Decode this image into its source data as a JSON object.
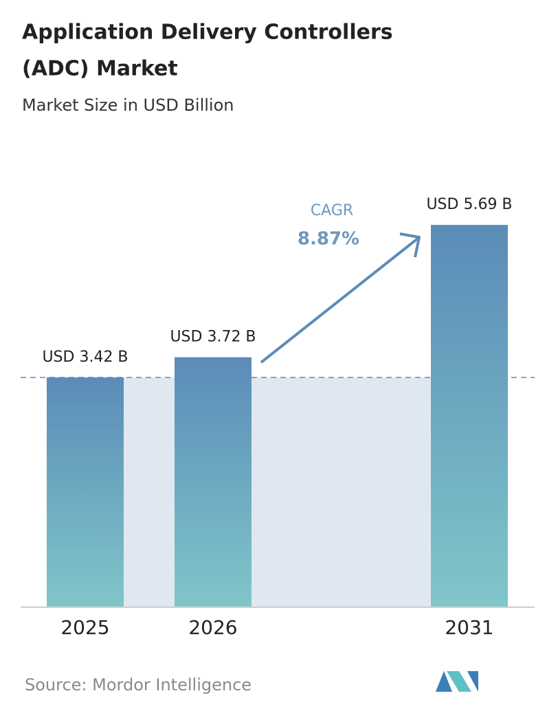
{
  "chart_data": {
    "type": "bar",
    "title": "Application Delivery Controllers (ADC) Market",
    "subtitle": "Market Size in USD Billion",
    "categories": [
      "2025",
      "2026",
      "2031"
    ],
    "values": [
      3.42,
      3.72,
      5.69
    ],
    "value_labels": [
      "USD 3.42 B",
      "USD 3.72 B",
      "USD 5.69 B"
    ],
    "annotation": {
      "label": "CAGR",
      "value": "8.87%"
    },
    "source": "Source:  Mordor Intelligence"
  }
}
